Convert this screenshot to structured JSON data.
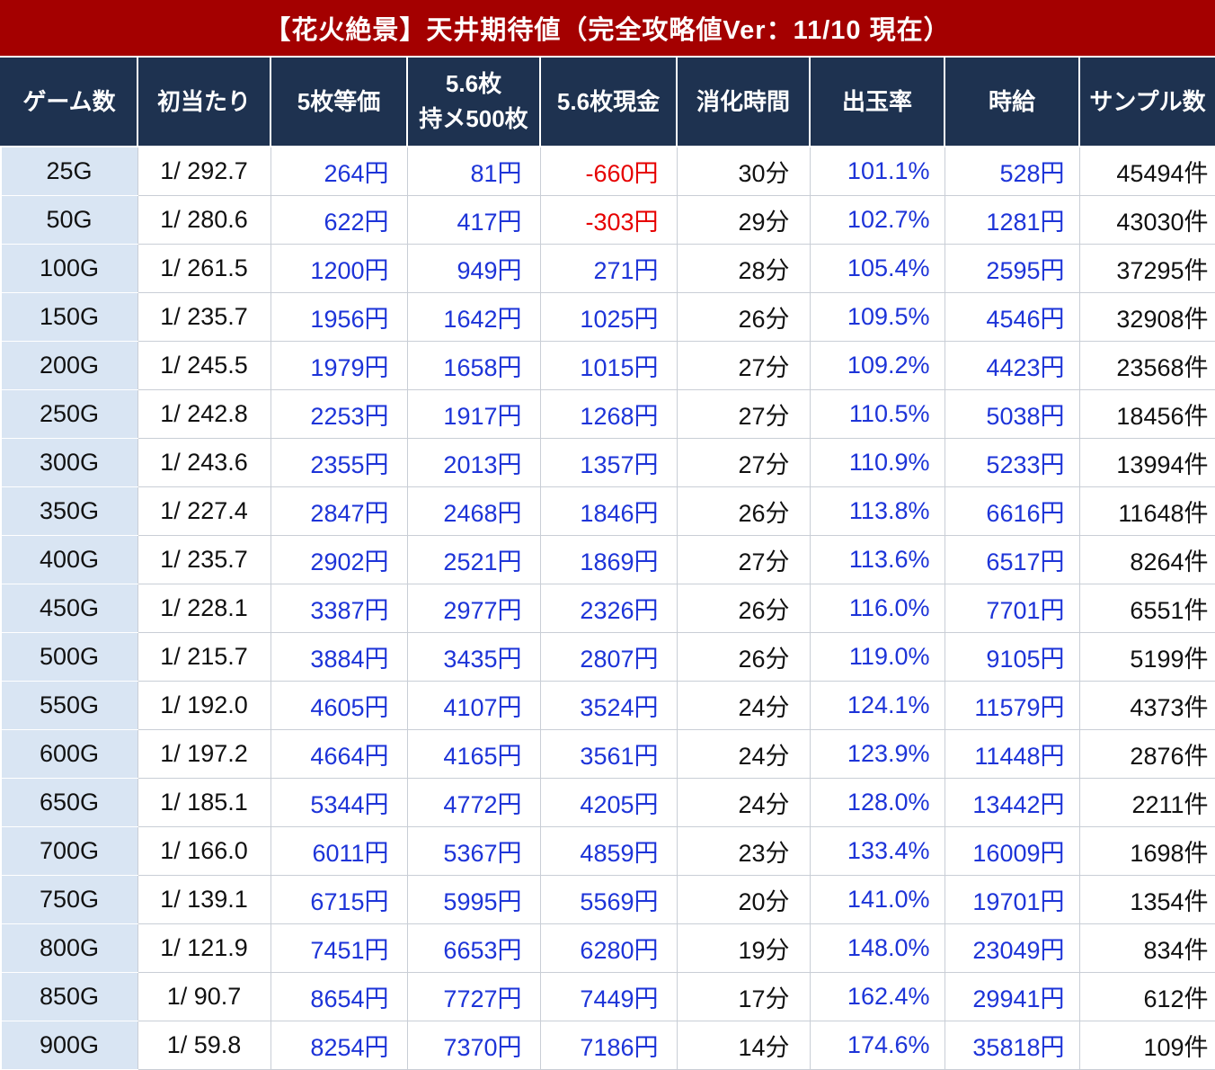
{
  "title": "【花火絶景】天井期待値（完全攻略値Ver：11/10 現在）",
  "colors": {
    "title_bg": "#a40000",
    "header_bg": "#1e3250",
    "row_label_bg": "#d9e5f3",
    "value_blue": "#1d34d8",
    "negative_red": "#e60000"
  },
  "chart_data": {
    "type": "table",
    "title": "【花火絶景】天井期待値（完全攻略値Ver：11/10 現在）",
    "columns": [
      "ゲーム数",
      "初当たり",
      "5枚等価",
      "5.6枚\n持メ500枚",
      "5.6枚現金",
      "消化時間",
      "出玉率",
      "時給",
      "サンプル数"
    ],
    "column_keys": [
      "games",
      "first-hit",
      "equivalent-5",
      "coins-5-6-hold500",
      "cash-5-6",
      "play-time",
      "payout-rate",
      "hourly-wage",
      "sample-count"
    ],
    "rows": [
      [
        "25G",
        "1/ 292.7",
        "264円",
        "81円",
        "-660円",
        "30分",
        "101.1%",
        "528円",
        "45494件"
      ],
      [
        "50G",
        "1/ 280.6",
        "622円",
        "417円",
        "-303円",
        "29分",
        "102.7%",
        "1281円",
        "43030件"
      ],
      [
        "100G",
        "1/ 261.5",
        "1200円",
        "949円",
        "271円",
        "28分",
        "105.4%",
        "2595円",
        "37295件"
      ],
      [
        "150G",
        "1/ 235.7",
        "1956円",
        "1642円",
        "1025円",
        "26分",
        "109.5%",
        "4546円",
        "32908件"
      ],
      [
        "200G",
        "1/ 245.5",
        "1979円",
        "1658円",
        "1015円",
        "27分",
        "109.2%",
        "4423円",
        "23568件"
      ],
      [
        "250G",
        "1/ 242.8",
        "2253円",
        "1917円",
        "1268円",
        "27分",
        "110.5%",
        "5038円",
        "18456件"
      ],
      [
        "300G",
        "1/ 243.6",
        "2355円",
        "2013円",
        "1357円",
        "27分",
        "110.9%",
        "5233円",
        "13994件"
      ],
      [
        "350G",
        "1/ 227.4",
        "2847円",
        "2468円",
        "1846円",
        "26分",
        "113.8%",
        "6616円",
        "11648件"
      ],
      [
        "400G",
        "1/ 235.7",
        "2902円",
        "2521円",
        "1869円",
        "27分",
        "113.6%",
        "6517円",
        "8264件"
      ],
      [
        "450G",
        "1/ 228.1",
        "3387円",
        "2977円",
        "2326円",
        "26分",
        "116.0%",
        "7701円",
        "6551件"
      ],
      [
        "500G",
        "1/ 215.7",
        "3884円",
        "3435円",
        "2807円",
        "26分",
        "119.0%",
        "9105円",
        "5199件"
      ],
      [
        "550G",
        "1/ 192.0",
        "4605円",
        "4107円",
        "3524円",
        "24分",
        "124.1%",
        "11579円",
        "4373件"
      ],
      [
        "600G",
        "1/ 197.2",
        "4664円",
        "4165円",
        "3561円",
        "24分",
        "123.9%",
        "11448円",
        "2876件"
      ],
      [
        "650G",
        "1/ 185.1",
        "5344円",
        "4772円",
        "4205円",
        "24分",
        "128.0%",
        "13442円",
        "2211件"
      ],
      [
        "700G",
        "1/ 166.0",
        "6011円",
        "5367円",
        "4859円",
        "23分",
        "133.4%",
        "16009円",
        "1698件"
      ],
      [
        "750G",
        "1/ 139.1",
        "6715円",
        "5995円",
        "5569円",
        "20分",
        "141.0%",
        "19701円",
        "1354件"
      ],
      [
        "800G",
        "1/ 121.9",
        "7451円",
        "6653円",
        "6280円",
        "19分",
        "148.0%",
        "23049円",
        "834件"
      ],
      [
        "850G",
        "1/ 90.7",
        "8654円",
        "7727円",
        "7449円",
        "17分",
        "162.4%",
        "29941円",
        "612件"
      ],
      [
        "900G",
        "1/ 59.8",
        "8254円",
        "7370円",
        "7186円",
        "14分",
        "174.6%",
        "35818円",
        "109件"
      ]
    ]
  }
}
